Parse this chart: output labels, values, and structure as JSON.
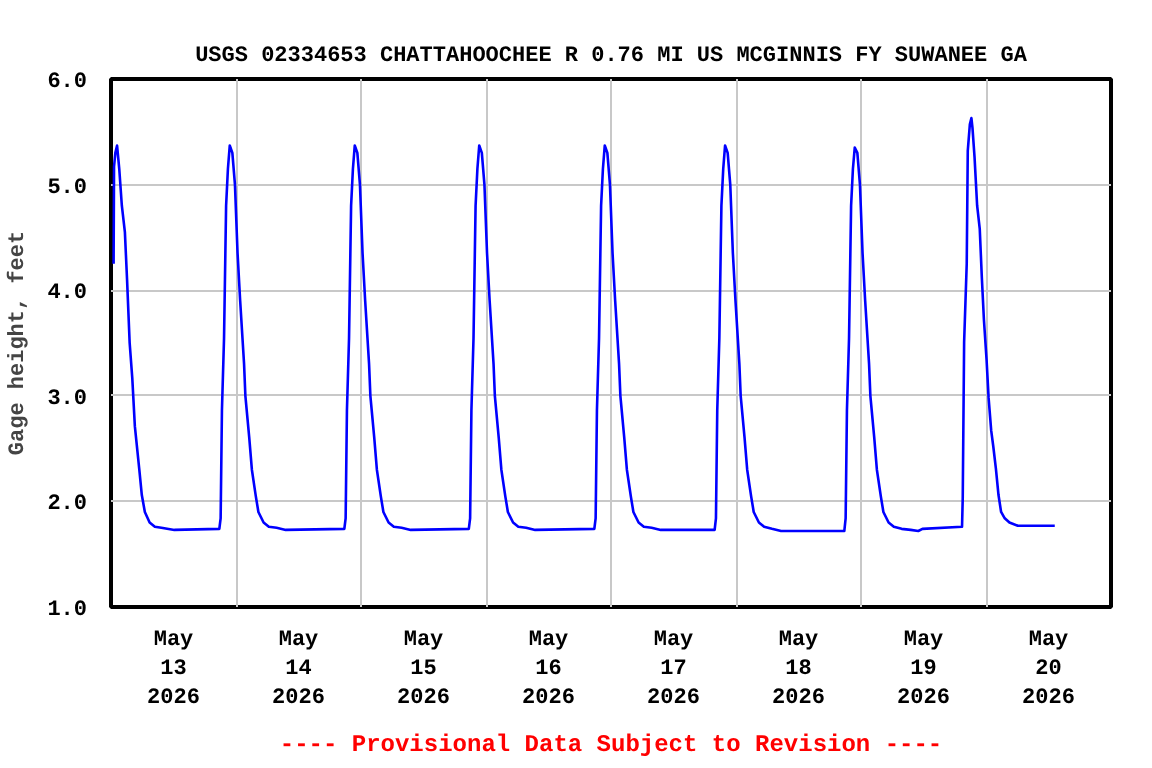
{
  "chart_data": {
    "type": "line",
    "title": "USGS 02334653 CHATTAHOOCHEE R 0.76 MI US MCGINNIS FY SUWANEE GA",
    "ylabel": "Gage height, feet",
    "annotations": [
      "---- Provisional Data Subject to Revision ----"
    ],
    "xlim": [
      "2026-05-13T00:00",
      "2026-05-21T00:00"
    ],
    "ylim": [
      1.0,
      6.0
    ],
    "yticks": [
      {
        "value": 1,
        "label": "1.0"
      },
      {
        "value": 2,
        "label": "2.0"
      },
      {
        "value": 3,
        "label": "3.0"
      },
      {
        "value": 4,
        "label": "4.0"
      },
      {
        "value": 5,
        "label": "5.0"
      },
      {
        "value": 6,
        "label": "6.0"
      }
    ],
    "xticks": [
      {
        "value": "2026-05-13T12:00",
        "label": "May\n13\n2026"
      },
      {
        "value": "2026-05-14T00:00",
        "label": null
      },
      {
        "value": "2026-05-14T12:00",
        "label": "May\n14\n2026"
      },
      {
        "value": "2026-05-15T00:00",
        "label": null
      },
      {
        "value": "2026-05-15T12:00",
        "label": "May\n15\n2026"
      },
      {
        "value": "2026-05-16T00:00",
        "label": null
      },
      {
        "value": "2026-05-16T12:00",
        "label": "May\n16\n2026"
      },
      {
        "value": "2026-05-17T00:00",
        "label": null
      },
      {
        "value": "2026-05-17T12:00",
        "label": "May\n17\n2026"
      },
      {
        "value": "2026-05-18T00:00",
        "label": null
      },
      {
        "value": "2026-05-18T12:00",
        "label": "May\n18\n2026"
      },
      {
        "value": "2026-05-19T00:00",
        "label": null
      },
      {
        "value": "2026-05-19T12:00",
        "label": "May\n19\n2026"
      },
      {
        "value": "2026-05-20T00:00",
        "label": null
      },
      {
        "value": "2026-05-20T12:00",
        "label": "May\n20\n2026"
      }
    ],
    "grid": true,
    "line_style": "solid",
    "series": [
      {
        "color": "#0000ff",
        "x": [
          "2026-05-13T00:30",
          "2026-05-13T00:35",
          "2026-05-13T00:50",
          "2026-05-13T01:10",
          "2026-05-13T01:35",
          "2026-05-13T02:05",
          "2026-05-13T02:40",
          "2026-05-13T03:05",
          "2026-05-13T03:35",
          "2026-05-13T04:05",
          "2026-05-13T04:35",
          "2026-05-13T05:25",
          "2026-05-13T05:55",
          "2026-05-13T06:30",
          "2026-05-13T07:25",
          "2026-05-13T08:25",
          "2026-05-13T09:40",
          "2026-05-13T12:10",
          "2026-05-13T20:48",
          "2026-05-13T21:03",
          "2026-05-13T21:18",
          "2026-05-13T21:42",
          "2026-05-13T22:06",
          "2026-05-13T22:27",
          "2026-05-13T22:48",
          "2026-05-13T23:18",
          "2026-05-13T23:48",
          "2026-05-14T00:18",
          "2026-05-14T00:48",
          "2026-05-14T01:33",
          "2026-05-14T01:48",
          "2026-05-14T02:33",
          "2026-05-14T03:03",
          "2026-05-14T03:48",
          "2026-05-14T04:18",
          "2026-05-14T05:18",
          "2026-05-14T06:18",
          "2026-05-14T07:48",
          "2026-05-14T09:33",
          "2026-05-14T20:48",
          "2026-05-14T21:03",
          "2026-05-14T21:18",
          "2026-05-14T21:42",
          "2026-05-14T22:06",
          "2026-05-14T22:27",
          "2026-05-14T22:48",
          "2026-05-14T23:18",
          "2026-05-14T23:48",
          "2026-05-15T00:18",
          "2026-05-15T00:48",
          "2026-05-15T01:33",
          "2026-05-15T01:48",
          "2026-05-15T02:33",
          "2026-05-15T03:03",
          "2026-05-15T03:48",
          "2026-05-15T04:18",
          "2026-05-15T05:18",
          "2026-05-15T06:18",
          "2026-05-15T07:48",
          "2026-05-15T09:33",
          "2026-05-15T20:42",
          "2026-05-15T20:57",
          "2026-05-15T21:12",
          "2026-05-15T21:36",
          "2026-05-15T22:00",
          "2026-05-15T22:21",
          "2026-05-15T22:42",
          "2026-05-15T23:12",
          "2026-05-15T23:42",
          "2026-05-16T00:12",
          "2026-05-16T00:42",
          "2026-05-16T01:27",
          "2026-05-16T01:42",
          "2026-05-16T02:27",
          "2026-05-16T02:57",
          "2026-05-16T03:42",
          "2026-05-16T04:12",
          "2026-05-16T05:12",
          "2026-05-16T06:12",
          "2026-05-16T07:42",
          "2026-05-16T09:27",
          "2026-05-16T20:48",
          "2026-05-16T21:03",
          "2026-05-16T21:18",
          "2026-05-16T21:42",
          "2026-05-16T22:06",
          "2026-05-16T22:27",
          "2026-05-16T22:48",
          "2026-05-16T23:18",
          "2026-05-16T23:48",
          "2026-05-17T00:18",
          "2026-05-17T00:48",
          "2026-05-17T01:33",
          "2026-05-17T01:48",
          "2026-05-17T02:33",
          "2026-05-17T03:03",
          "2026-05-17T03:48",
          "2026-05-17T04:18",
          "2026-05-17T05:18",
          "2026-05-17T06:18",
          "2026-05-17T07:48",
          "2026-05-17T09:33",
          "2026-05-17T19:54",
          "2026-05-17T20:09",
          "2026-05-17T20:24",
          "2026-05-17T20:48",
          "2026-05-17T21:12",
          "2026-05-17T21:33",
          "2026-05-17T21:54",
          "2026-05-17T22:24",
          "2026-05-17T22:54",
          "2026-05-17T23:24",
          "2026-05-17T23:54",
          "2026-05-18T00:39",
          "2026-05-18T00:54",
          "2026-05-18T01:39",
          "2026-05-18T02:09",
          "2026-05-18T02:54",
          "2026-05-18T03:24",
          "2026-05-18T04:24",
          "2026-05-18T05:24",
          "2026-05-18T06:54",
          "2026-05-18T08:39",
          "2026-05-18T20:48",
          "2026-05-18T21:03",
          "2026-05-18T21:18",
          "2026-05-18T21:42",
          "2026-05-18T22:06",
          "2026-05-18T22:27",
          "2026-05-18T22:48",
          "2026-05-18T23:18",
          "2026-05-18T23:48",
          "2026-05-19T00:18",
          "2026-05-19T00:48",
          "2026-05-19T01:33",
          "2026-05-19T01:48",
          "2026-05-19T02:33",
          "2026-05-19T03:03",
          "2026-05-19T03:48",
          "2026-05-19T04:18",
          "2026-05-19T05:18",
          "2026-05-19T06:18",
          "2026-05-19T07:48",
          "2026-05-19T09:33",
          "2026-05-19T11:00",
          "2026-05-19T11:48",
          "2026-05-19T19:24",
          "2026-05-19T19:32",
          "2026-05-19T19:48",
          "2026-05-19T20:18",
          "2026-05-19T20:30",
          "2026-05-19T20:54",
          "2026-05-19T21:12",
          "2026-05-19T21:24",
          "2026-05-19T21:48",
          "2026-05-19T22:18",
          "2026-05-19T22:48",
          "2026-05-19T23:12",
          "2026-05-19T23:36",
          "2026-05-20T00:06",
          "2026-05-20T00:30",
          "2026-05-20T01:00",
          "2026-05-20T01:24",
          "2026-05-20T01:54",
          "2026-05-20T02:24",
          "2026-05-20T02:54",
          "2026-05-20T03:36",
          "2026-05-20T04:30",
          "2026-05-20T06:06",
          "2026-05-20T13:12"
        ],
        "values": [
          4.25,
          5.17,
          5.3,
          5.37,
          5.15,
          4.8,
          4.55,
          4.1,
          3.5,
          3.17,
          2.71,
          2.31,
          2.06,
          1.9,
          1.8,
          1.76,
          1.75,
          1.73,
          1.74,
          1.84,
          2.86,
          3.54,
          4.8,
          5.15,
          5.37,
          5.3,
          5.0,
          4.35,
          3.9,
          3.3,
          3.0,
          2.6,
          2.3,
          2.05,
          1.9,
          1.8,
          1.76,
          1.75,
          1.73,
          1.74,
          1.84,
          2.86,
          3.54,
          4.8,
          5.15,
          5.37,
          5.3,
          5.0,
          4.35,
          3.9,
          3.3,
          3.0,
          2.6,
          2.3,
          2.05,
          1.9,
          1.8,
          1.76,
          1.75,
          1.73,
          1.74,
          1.84,
          2.86,
          3.54,
          4.8,
          5.15,
          5.37,
          5.3,
          5.0,
          4.35,
          3.9,
          3.3,
          3.0,
          2.6,
          2.3,
          2.05,
          1.9,
          1.8,
          1.76,
          1.75,
          1.73,
          1.74,
          1.84,
          2.86,
          3.54,
          4.8,
          5.15,
          5.37,
          5.3,
          5.0,
          4.35,
          3.9,
          3.3,
          3.0,
          2.6,
          2.3,
          2.05,
          1.9,
          1.8,
          1.76,
          1.75,
          1.73,
          1.73,
          1.84,
          2.86,
          3.54,
          4.8,
          5.15,
          5.37,
          5.3,
          5.0,
          4.35,
          3.9,
          3.3,
          3.0,
          2.6,
          2.3,
          2.05,
          1.9,
          1.8,
          1.76,
          1.74,
          1.72,
          1.72,
          1.84,
          2.86,
          3.54,
          4.8,
          5.15,
          5.35,
          5.3,
          5.0,
          4.35,
          3.9,
          3.3,
          3.0,
          2.6,
          2.3,
          2.05,
          1.9,
          1.8,
          1.76,
          1.74,
          1.73,
          1.72,
          1.74,
          1.76,
          2.03,
          3.51,
          4.25,
          5.32,
          5.57,
          5.63,
          5.54,
          5.26,
          4.8,
          4.58,
          4.12,
          3.72,
          3.35,
          2.98,
          2.67,
          2.52,
          2.31,
          2.06,
          1.9,
          1.84,
          1.8,
          1.77,
          1.77
        ]
      }
    ]
  }
}
